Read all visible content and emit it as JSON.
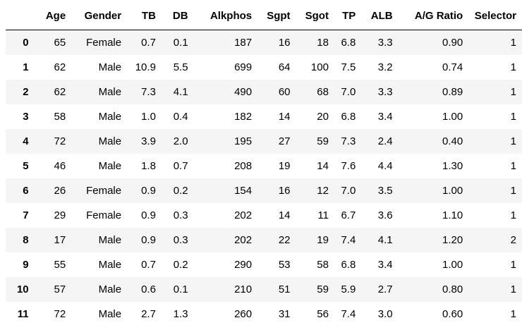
{
  "table": {
    "columns": [
      "",
      "Age",
      "Gender",
      "TB",
      "DB",
      "Alkphos",
      "Sgpt",
      "Sgot",
      "TP",
      "ALB",
      "A/G Ratio",
      "Selector"
    ],
    "rows": [
      [
        "0",
        "65",
        "Female",
        "0.7",
        "0.1",
        "187",
        "16",
        "18",
        "6.8",
        "3.3",
        "0.90",
        "1"
      ],
      [
        "1",
        "62",
        "Male",
        "10.9",
        "5.5",
        "699",
        "64",
        "100",
        "7.5",
        "3.2",
        "0.74",
        "1"
      ],
      [
        "2",
        "62",
        "Male",
        "7.3",
        "4.1",
        "490",
        "60",
        "68",
        "7.0",
        "3.3",
        "0.89",
        "1"
      ],
      [
        "3",
        "58",
        "Male",
        "1.0",
        "0.4",
        "182",
        "14",
        "20",
        "6.8",
        "3.4",
        "1.00",
        "1"
      ],
      [
        "4",
        "72",
        "Male",
        "3.9",
        "2.0",
        "195",
        "27",
        "59",
        "7.3",
        "2.4",
        "0.40",
        "1"
      ],
      [
        "5",
        "46",
        "Male",
        "1.8",
        "0.7",
        "208",
        "19",
        "14",
        "7.6",
        "4.4",
        "1.30",
        "1"
      ],
      [
        "6",
        "26",
        "Female",
        "0.9",
        "0.2",
        "154",
        "16",
        "12",
        "7.0",
        "3.5",
        "1.00",
        "1"
      ],
      [
        "7",
        "29",
        "Female",
        "0.9",
        "0.3",
        "202",
        "14",
        "11",
        "6.7",
        "3.6",
        "1.10",
        "1"
      ],
      [
        "8",
        "17",
        "Male",
        "0.9",
        "0.3",
        "202",
        "22",
        "19",
        "7.4",
        "4.1",
        "1.20",
        "2"
      ],
      [
        "9",
        "55",
        "Male",
        "0.7",
        "0.2",
        "290",
        "53",
        "58",
        "6.8",
        "3.4",
        "1.00",
        "1"
      ],
      [
        "10",
        "57",
        "Male",
        "0.6",
        "0.1",
        "210",
        "51",
        "59",
        "5.9",
        "2.7",
        "0.80",
        "1"
      ],
      [
        "11",
        "72",
        "Male",
        "2.7",
        "1.3",
        "260",
        "31",
        "56",
        "7.4",
        "3.0",
        "0.60",
        "1"
      ]
    ]
  }
}
